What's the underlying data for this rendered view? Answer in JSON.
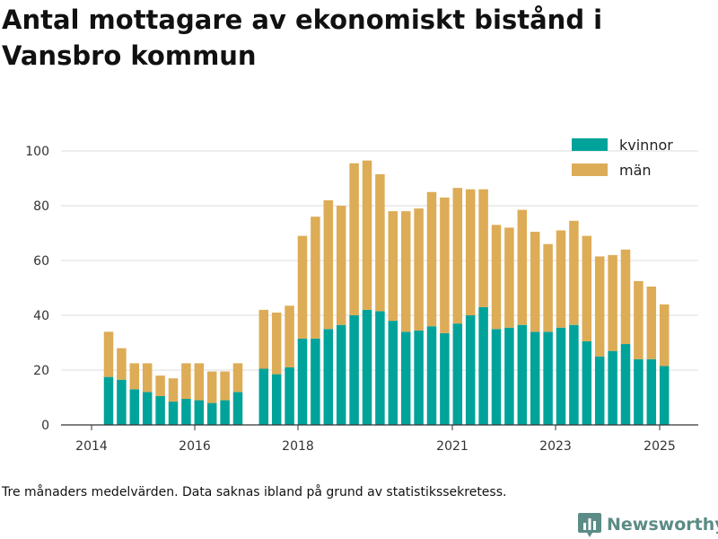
{
  "title": "Antal mottagare av ekonomiskt bistånd i Vansbro kommun",
  "footnote": "Tre månaders medelvärden. Data saknas ibland på grund av statistikssekretess.",
  "brand": {
    "name": "Newsworthy",
    "icon": "bar-chart-logo-icon"
  },
  "colors": {
    "kvinnor": "#00a39a",
    "man": "#ddac57",
    "grid": "#dddddd",
    "axis": "#333333"
  },
  "chart_data": {
    "type": "bar",
    "stacked": true,
    "x_ticks": [
      "2014",
      "2016",
      "2018",
      "2021",
      "2023",
      "2025"
    ],
    "y_ticks": [
      "0",
      "20",
      "40",
      "60",
      "80",
      "100"
    ],
    "ylim": [
      0,
      100
    ],
    "grid": true,
    "legend_position": "top-right",
    "series": [
      {
        "name": "kvinnor",
        "values": [
          17.5,
          16.5,
          13,
          12,
          10.5,
          8.5,
          9.5,
          9,
          8,
          9,
          12,
          null,
          20.5,
          18.5,
          21,
          31.5,
          31.5,
          35,
          36.5,
          40,
          42,
          41.5,
          38,
          34,
          34.5,
          36,
          33.5,
          37,
          40,
          43,
          35,
          35.5,
          36.5,
          34,
          34,
          35.5,
          36.5,
          30.5,
          25,
          27,
          29.5,
          24,
          24,
          21.5
        ]
      },
      {
        "name": "män",
        "values": [
          16.5,
          11.5,
          9.5,
          10.5,
          7.5,
          8.5,
          13,
          13.5,
          11.5,
          10.5,
          10.5,
          null,
          21.5,
          22.5,
          22.5,
          37.5,
          44.5,
          47,
          43.5,
          55.5,
          54.5,
          50,
          40,
          44,
          44.5,
          49,
          49.5,
          49.5,
          46,
          43,
          38,
          36.5,
          42,
          36.5,
          32,
          35.5,
          38,
          38.5,
          36.5,
          35,
          34.5,
          28.5,
          26.5,
          22.5
        ]
      }
    ]
  }
}
